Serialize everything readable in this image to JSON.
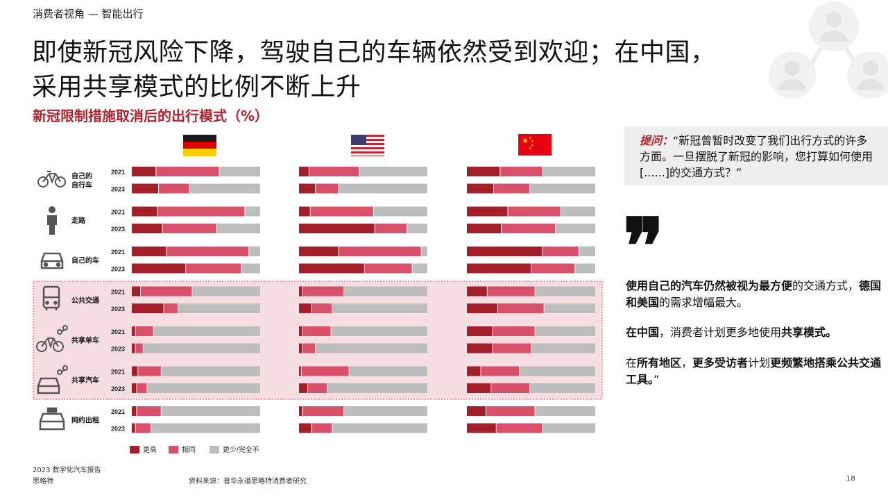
{
  "header": {
    "section": "消费者视角 — 智能出行",
    "title_line1": "即使新冠风险下降，驾驶自己的车辆依然受到欢迎；在中国，",
    "title_line2": "采用共享模式的比例不断上升",
    "subtitle": "新冠限制措施取消后的出行模式（%）"
  },
  "colors": {
    "higher": "#a3202b",
    "same": "#d9506a",
    "lower": "#bdbdbd",
    "accent": "#b2222e",
    "highlight_bg": "#f6dde1",
    "highlight_border": "#d9506a"
  },
  "chart_data": {
    "type": "bar",
    "stacked": true,
    "orientation": "horizontal",
    "unit": "%",
    "panels": [
      {
        "country": "德国",
        "flag": "germany-flag"
      },
      {
        "country": "美国",
        "flag": "usa-flag"
      },
      {
        "country": "中国",
        "flag": "china-flag"
      }
    ],
    "years": [
      "2021",
      "2023"
    ],
    "legend": [
      "更高",
      "相同",
      "更少/完全不"
    ],
    "highlighted_categories": [
      "公共交通",
      "共享单车",
      "共享汽车"
    ],
    "categories": [
      {
        "label_lines": [
          "自己的",
          "自行车"
        ],
        "icon": "bicycle-icon",
        "values": [
          [
            [
              19,
              49,
              32
            ],
            [
              21,
              24,
              55
            ]
          ],
          [
            [
              8,
              39,
              53
            ],
            [
              13,
              18,
              69
            ]
          ],
          [
            [
              26,
              33,
              41
            ],
            [
              21,
              28,
              51
            ]
          ]
        ]
      },
      {
        "label_lines": [
          "走路"
        ],
        "icon": "walking-person-icon",
        "values": [
          [
            [
              20,
              67,
              12
            ],
            [
              24,
              42,
              34
            ]
          ],
          [
            [
              9,
              49,
              42
            ],
            [
              59,
              25,
              16
            ]
          ],
          [
            [
              32,
              41,
              27
            ],
            [
              27,
              42,
              31
            ]
          ]
        ]
      },
      {
        "label_lines": [
          "自己的车"
        ],
        "icon": "car-icon",
        "values": [
          [
            [
              27,
              64,
              9
            ],
            [
              42,
              43,
              15
            ]
          ],
          [
            [
              31,
              64,
              5
            ],
            [
              51,
              37,
              12
            ]
          ],
          [
            [
              59,
              28,
              13
            ],
            [
              50,
              34,
              16
            ]
          ]
        ]
      },
      {
        "label_lines": [
          "公共交通"
        ],
        "icon": "bus-icon",
        "values": [
          [
            [
              7,
              40,
              53
            ],
            [
              25,
              11,
              64
            ]
          ],
          [
            [
              3,
              32,
              65
            ],
            [
              10,
              16,
              74
            ]
          ],
          [
            [
              16,
              37,
              47
            ],
            [
              24,
              36,
              40
            ]
          ]
        ]
      },
      {
        "label_lines": [
          "共享单车"
        ],
        "icon": "shared-bike-icon",
        "values": [
          [
            [
              3,
              14,
              83
            ],
            [
              3,
              6,
              91
            ]
          ],
          [
            [
              3,
              22,
              75
            ],
            [
              3,
              10,
              87
            ]
          ],
          [
            [
              20,
              33,
              47
            ],
            [
              20,
              30,
              50
            ]
          ]
        ]
      },
      {
        "label_lines": [
          "共享汽车"
        ],
        "icon": "shared-car-icon",
        "values": [
          [
            [
              5,
              18,
              77
            ],
            [
              4,
              8,
              88
            ]
          ],
          [
            [
              2,
              37,
              61
            ],
            [
              7,
              15,
              78
            ]
          ],
          [
            [
              11,
              30,
              59
            ],
            [
              19,
              30,
              51
            ]
          ]
        ]
      },
      {
        "label_lines": [
          "网约出租"
        ],
        "icon": "taxi-icon",
        "values": [
          [
            [
              4,
              19,
              77
            ],
            [
              3,
              12,
              85
            ]
          ],
          [
            [
              3,
              32,
              65
            ],
            [
              10,
              16,
              74
            ]
          ],
          [
            [
              15,
              38,
              47
            ],
            [
              23,
              36,
              41
            ]
          ]
        ]
      }
    ]
  },
  "quote": {
    "ask_label": "提问：",
    "text": "“新冠曾暂时改变了我们出行方式的许多方面。一旦摆脱了新冠的影响，您打算如何使用[......]的交通方式？”",
    "mark": "❞"
  },
  "paragraphs": {
    "p1": [
      "使用自己的汽车仍然被视为最方便",
      "的交通方式，",
      "德国和美国",
      "的需求增幅最大。"
    ],
    "p2": [
      "在中国",
      "，消费者计划更多地使用",
      "共享模式。"
    ],
    "p3": [
      "在",
      "所有地区",
      "，",
      "更多受访者",
      "计划",
      "更频繁地搭乘公共交通工具。",
      "”"
    ]
  },
  "footer": {
    "report": "2023 数字化汽车报告",
    "company": "思略特",
    "source": "资料来源：普华永道思略特消费者研究",
    "page": "18"
  }
}
